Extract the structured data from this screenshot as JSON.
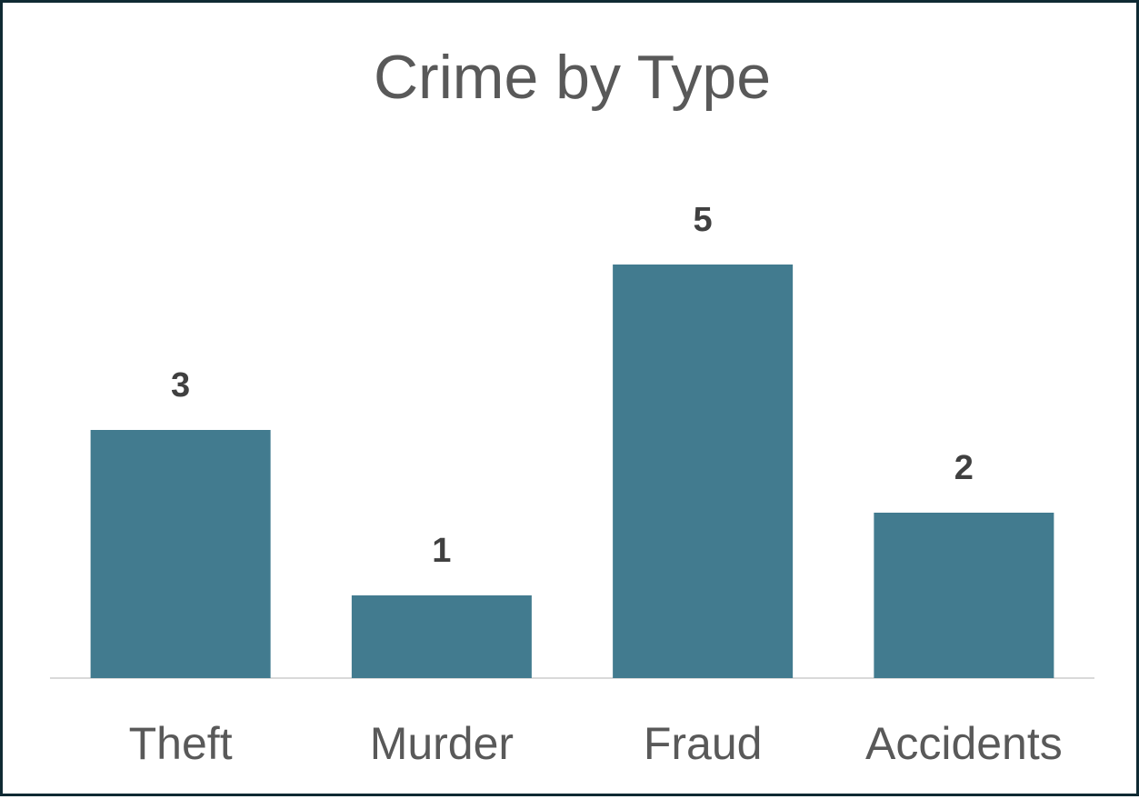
{
  "chart_data": {
    "type": "bar",
    "title": "Crime by Type",
    "xlabel": "",
    "ylabel": "",
    "categories": [
      "Theft",
      "Murder",
      "Fraud",
      "Accidents"
    ],
    "values": [
      3,
      1,
      5,
      2
    ],
    "ylim": [
      0,
      5.5
    ],
    "grid": false,
    "legend": "none",
    "data_labels": true,
    "bar_color": "#427b8f",
    "axis_color": "#d9d9d9"
  }
}
